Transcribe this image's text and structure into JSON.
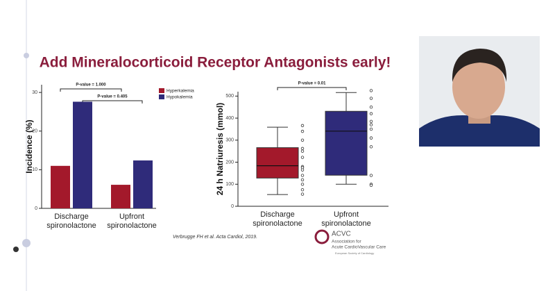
{
  "title": "Add Mineralocorticoid Receptor Antagonists early!",
  "citation": "Verbrugge FH et al. Acta Cardiol, 2019.",
  "logo": {
    "name": "ACVC",
    "line1": "Association for",
    "line2": "Acute CardioVascular Care",
    "society": "European Society of Cardiology"
  },
  "chart_data": [
    {
      "type": "bar",
      "ylabel": "Incidence (%)",
      "categories": [
        "Discharge spironolactone",
        "Upfront spironolactone"
      ],
      "series": [
        {
          "name": "Hyperkalemia",
          "color": "#a3192b",
          "values": [
            11,
            6.1
          ]
        },
        {
          "name": "Hypokalemia",
          "color": "#2f2b7a",
          "values": [
            27.6,
            12.4
          ]
        }
      ],
      "ylim": [
        0,
        32
      ],
      "yticks": [
        0,
        10,
        20,
        30
      ],
      "annotations": [
        "P-value = 1.000",
        "P-value = 0.405"
      ]
    },
    {
      "type": "box",
      "ylabel": "24 h Natriuresis (mmol)",
      "categories": [
        "Discharge spironolactone",
        "Upfront spironolactone"
      ],
      "boxes": [
        {
          "color": "#a3192b",
          "min": 53,
          "q1": 128,
          "median": 184,
          "q3": 266,
          "max": 359,
          "points": [
            366,
            340,
            300,
            262,
            250,
            222,
            180,
            175,
            165,
            140,
            120,
            100,
            75,
            55
          ]
        },
        {
          "color": "#2f2b7a",
          "min": 100,
          "q1": 141,
          "median": 341,
          "q3": 431,
          "max": 516,
          "points": [
            525,
            490,
            450,
            420,
            385,
            370,
            350,
            310,
            270,
            140,
            100,
            95
          ]
        }
      ],
      "ylim": [
        0,
        520
      ],
      "yticks": [
        0,
        100,
        200,
        300,
        400,
        500
      ],
      "annotations": [
        "P-value = 0.01"
      ]
    }
  ]
}
